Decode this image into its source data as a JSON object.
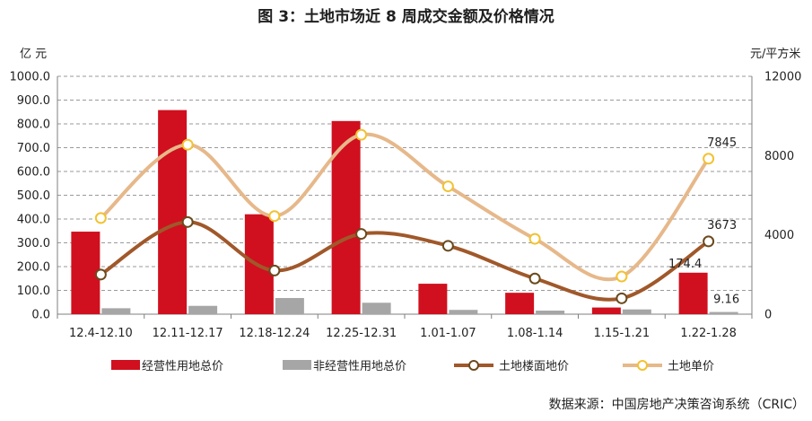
{
  "chart_data": {
    "type": "bar+line",
    "title": "图 3：土地市场近 8 周成交金额及价格情况",
    "categories": [
      "12.4-12.10",
      "12.11-12.17",
      "12.18-12.24",
      "12.25-12.31",
      "1.01-1.07",
      "1.08-1.14",
      "1.15-1.21",
      "1.22-1.28"
    ],
    "left_axis": {
      "unit": "亿 元",
      "min": 0,
      "max": 1000,
      "step": 100,
      "tick_labels": [
        "0.0",
        "100.0",
        "200.0",
        "300.0",
        "400.0",
        "500.0",
        "600.0",
        "700.0",
        "800.0",
        "900.0",
        "1000.0"
      ]
    },
    "right_axis": {
      "unit": "元/平方米",
      "min": 0,
      "max": 12000,
      "step": 4000,
      "tick_labels": [
        "0",
        "4000",
        "8000",
        "12000"
      ]
    },
    "series": [
      {
        "name": "经营性用地总价",
        "type": "bar",
        "axis": "left",
        "color": "#d0101e",
        "values": [
          347,
          858,
          420,
          812,
          128,
          90,
          28,
          174.4
        ]
      },
      {
        "name": "非经营性用地总价",
        "type": "bar",
        "axis": "left",
        "color": "#a6a6a6",
        "values": [
          25,
          35,
          68,
          48,
          18,
          15,
          20,
          9.16
        ]
      },
      {
        "name": "土地楼面地价",
        "type": "line",
        "axis": "right",
        "color": "#a0582a",
        "values": [
          2000,
          4650,
          2200,
          4050,
          3450,
          1800,
          800,
          3673
        ]
      },
      {
        "name": "土地单价",
        "type": "line",
        "axis": "right",
        "color": "#e6b88a",
        "values": [
          4850,
          8550,
          4950,
          9050,
          6450,
          3800,
          1900,
          7845
        ]
      }
    ],
    "annotations": [
      "174.4",
      "9.16",
      "3673",
      "7845"
    ],
    "legend_position": "bottom"
  },
  "source": "数据来源：中国房地产决策咨询系统（CRIC）"
}
